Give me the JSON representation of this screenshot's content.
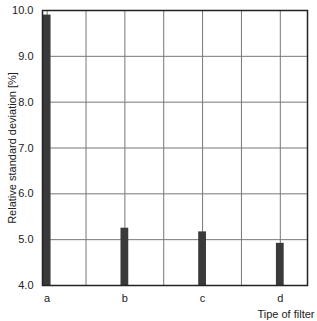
{
  "chart_data": {
    "type": "bar",
    "categories": [
      "a",
      "b",
      "c",
      "d"
    ],
    "values": [
      9.9,
      5.25,
      5.17,
      4.92
    ],
    "color": "#3a3a3a",
    "xlabel": "Tipe of filter",
    "ylabel": "Relative standard deviation [%]",
    "ylim": [
      4,
      10
    ],
    "yticks": [
      4,
      5,
      6,
      7,
      8,
      9,
      10
    ],
    "grid": true
  }
}
